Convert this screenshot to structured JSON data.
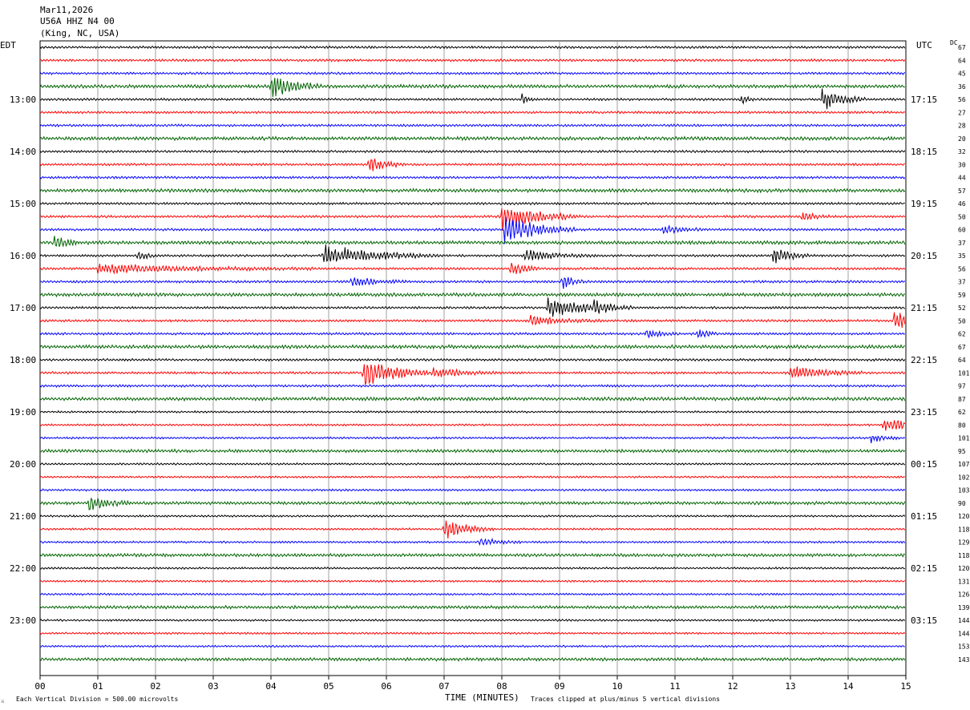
{
  "header": {
    "date": "Mar11,2026",
    "station": "U56A HHZ N4 00",
    "location": "(King, NC, USA)"
  },
  "left_timezone": "EDT",
  "right_timezone": "UTC",
  "dc_label": "DC",
  "footer": {
    "icon_glyph": "⚔",
    "scale_text": "Each Vertical Division =  500.00 microvolts",
    "clip_text": "Traces clipped at plus/minus 5 vertical divisions"
  },
  "chart_data": {
    "type": "line",
    "subtype": "helicorder",
    "xlabel": "TIME (MINUTES)",
    "x_ticks": [
      "00",
      "01",
      "02",
      "03",
      "04",
      "05",
      "06",
      "07",
      "08",
      "09",
      "10",
      "11",
      "12",
      "13",
      "14",
      "15"
    ],
    "xlim": [
      0,
      15
    ],
    "row_minutes": 15,
    "colors": [
      "#000000",
      "#ff0000",
      "#0000ff",
      "#006400"
    ],
    "left_time_labels": [
      {
        "row": 4,
        "label": "13:00"
      },
      {
        "row": 8,
        "label": "14:00"
      },
      {
        "row": 12,
        "label": "15:00"
      },
      {
        "row": 16,
        "label": "16:00"
      },
      {
        "row": 20,
        "label": "17:00"
      },
      {
        "row": 24,
        "label": "18:00"
      },
      {
        "row": 28,
        "label": "19:00"
      },
      {
        "row": 32,
        "label": "20:00"
      },
      {
        "row": 36,
        "label": "21:00"
      },
      {
        "row": 40,
        "label": "22:00"
      },
      {
        "row": 44,
        "label": "23:00"
      }
    ],
    "right_time_labels": [
      {
        "row": 4,
        "label": "17:15"
      },
      {
        "row": 8,
        "label": "18:15"
      },
      {
        "row": 12,
        "label": "19:15"
      },
      {
        "row": 16,
        "label": "20:15"
      },
      {
        "row": 20,
        "label": "21:15"
      },
      {
        "row": 24,
        "label": "22:15"
      },
      {
        "row": 28,
        "label": "23:15"
      },
      {
        "row": 32,
        "label": "00:15"
      },
      {
        "row": 36,
        "label": "01:15"
      },
      {
        "row": 40,
        "label": "02:15"
      },
      {
        "row": 44,
        "label": "03:15"
      }
    ],
    "dc_offsets": [
      67,
      64,
      45,
      36,
      56,
      27,
      28,
      20,
      32,
      30,
      44,
      57,
      46,
      50,
      60,
      37,
      35,
      56,
      37,
      59,
      52,
      50,
      62,
      67,
      64,
      101,
      97,
      87,
      62,
      80,
      101,
      95,
      107,
      102,
      103,
      90,
      120,
      118,
      129,
      118,
      120,
      131,
      126,
      139,
      144,
      144,
      153,
      143
    ],
    "events": [
      {
        "row": 3,
        "minute": 4.0,
        "amp": 14,
        "dur": 0.35
      },
      {
        "row": 4,
        "minute": 13.55,
        "amp": 12,
        "dur": 0.3
      },
      {
        "row": 4,
        "minute": 8.35,
        "amp": 5,
        "dur": 0.1
      },
      {
        "row": 4,
        "minute": 12.15,
        "amp": 5,
        "dur": 0.1
      },
      {
        "row": 9,
        "minute": 5.7,
        "amp": 9,
        "dur": 0.25
      },
      {
        "row": 13,
        "minute": 8.0,
        "amp": 14,
        "dur": 0.55
      },
      {
        "row": 13,
        "minute": 13.2,
        "amp": 6,
        "dur": 0.2
      },
      {
        "row": 14,
        "minute": 8.05,
        "amp": 16,
        "dur": 0.5
      },
      {
        "row": 14,
        "minute": 10.8,
        "amp": 5,
        "dur": 0.3
      },
      {
        "row": 15,
        "minute": 0.25,
        "amp": 6,
        "dur": 0.2
      },
      {
        "row": 16,
        "minute": 4.9,
        "amp": 12,
        "dur": 0.8
      },
      {
        "row": 16,
        "minute": 12.7,
        "amp": 11,
        "dur": 0.25
      },
      {
        "row": 16,
        "minute": 8.4,
        "amp": 6,
        "dur": 0.5
      },
      {
        "row": 16,
        "minute": 1.7,
        "amp": 5,
        "dur": 0.15
      },
      {
        "row": 17,
        "minute": 8.15,
        "amp": 10,
        "dur": 0.2
      },
      {
        "row": 17,
        "minute": 1.0,
        "amp": 5,
        "dur": 1.5
      },
      {
        "row": 18,
        "minute": 9.05,
        "amp": 8,
        "dur": 0.15
      },
      {
        "row": 18,
        "minute": 5.4,
        "amp": 5,
        "dur": 0.4
      },
      {
        "row": 20,
        "minute": 8.8,
        "amp": 11,
        "dur": 0.6
      },
      {
        "row": 20,
        "minute": 9.6,
        "amp": 6,
        "dur": 0.2
      },
      {
        "row": 21,
        "minute": 14.8,
        "amp": 10,
        "dur": 0.35
      },
      {
        "row": 21,
        "minute": 8.5,
        "amp": 5,
        "dur": 0.5
      },
      {
        "row": 22,
        "minute": 11.4,
        "amp": 7,
        "dur": 0.15
      },
      {
        "row": 22,
        "minute": 10.5,
        "amp": 5,
        "dur": 0.2
      },
      {
        "row": 25,
        "minute": 5.6,
        "amp": 20,
        "dur": 0.45
      },
      {
        "row": 25,
        "minute": 13.0,
        "amp": 8,
        "dur": 0.5
      },
      {
        "row": 25,
        "minute": 6.8,
        "amp": 5,
        "dur": 0.5
      },
      {
        "row": 29,
        "minute": 14.6,
        "amp": 7,
        "dur": 0.6
      },
      {
        "row": 30,
        "minute": 14.4,
        "amp": 5,
        "dur": 0.2
      },
      {
        "row": 35,
        "minute": 0.85,
        "amp": 8,
        "dur": 0.3
      },
      {
        "row": 37,
        "minute": 7.0,
        "amp": 12,
        "dur": 0.35
      },
      {
        "row": 38,
        "minute": 7.6,
        "amp": 5,
        "dur": 0.3
      }
    ]
  }
}
